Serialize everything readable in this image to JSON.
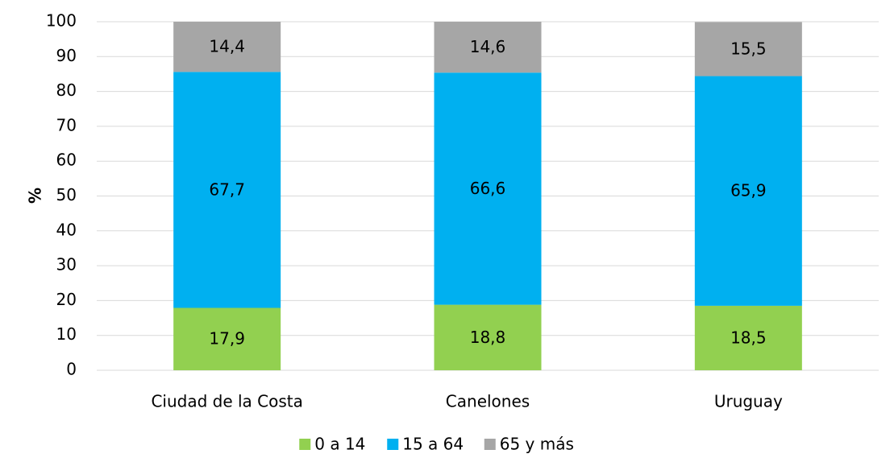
{
  "chart_data": {
    "type": "stacked_bar",
    "y_label": "%",
    "categories": [
      "Ciudad de la Costa",
      "Canelones",
      "Uruguay"
    ],
    "series": [
      {
        "name": "0 a 14",
        "color": "#92d050",
        "values": [
          17.9,
          18.8,
          18.5
        ],
        "value_labels": [
          "17,9",
          "18,8",
          "18,5"
        ]
      },
      {
        "name": "15 a 64",
        "color": "#00b0f0",
        "values": [
          67.7,
          66.6,
          65.9
        ],
        "value_labels": [
          "67,7",
          "66,6",
          "65,9"
        ]
      },
      {
        "name": "65 y más",
        "color": "#a6a6a6",
        "values": [
          14.4,
          14.6,
          15.5
        ],
        "value_labels": [
          "14,4",
          "14,6",
          "15,5"
        ]
      }
    ],
    "ylim": [
      0,
      100
    ],
    "yticks": [
      0,
      10,
      20,
      30,
      40,
      50,
      60,
      70,
      80,
      90,
      100
    ],
    "grid": true,
    "legend": "bottom"
  }
}
